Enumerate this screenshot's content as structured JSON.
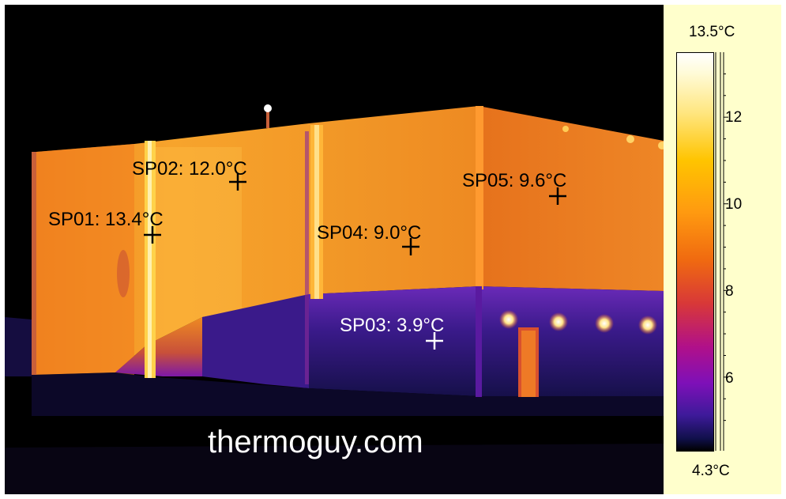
{
  "thermal_image": {
    "spots": [
      {
        "id": "sp01",
        "label": "SP01: 13.4°C",
        "color": "#000000"
      },
      {
        "id": "sp02",
        "label": "SP02: 12.0°C",
        "color": "#000000"
      },
      {
        "id": "sp03",
        "label": "SP03: 3.9°C",
        "color": "#ffffff"
      },
      {
        "id": "sp04",
        "label": "SP04: 9.0°C",
        "color": "#000000"
      },
      {
        "id": "sp05",
        "label": "SP05: 9.6°C",
        "color": "#000000"
      }
    ],
    "watermark": "thermoguy.com"
  },
  "temperature_scale": {
    "max_label": "13.5°C",
    "min_label": "4.3°C",
    "tick_labels": [
      "12",
      "10",
      "8",
      "6"
    ],
    "palette": "ironbow",
    "colors": [
      "#000000",
      "#3e1a9a",
      "#b0108a",
      "#f06a10",
      "#ffc400",
      "#ffffff"
    ]
  }
}
